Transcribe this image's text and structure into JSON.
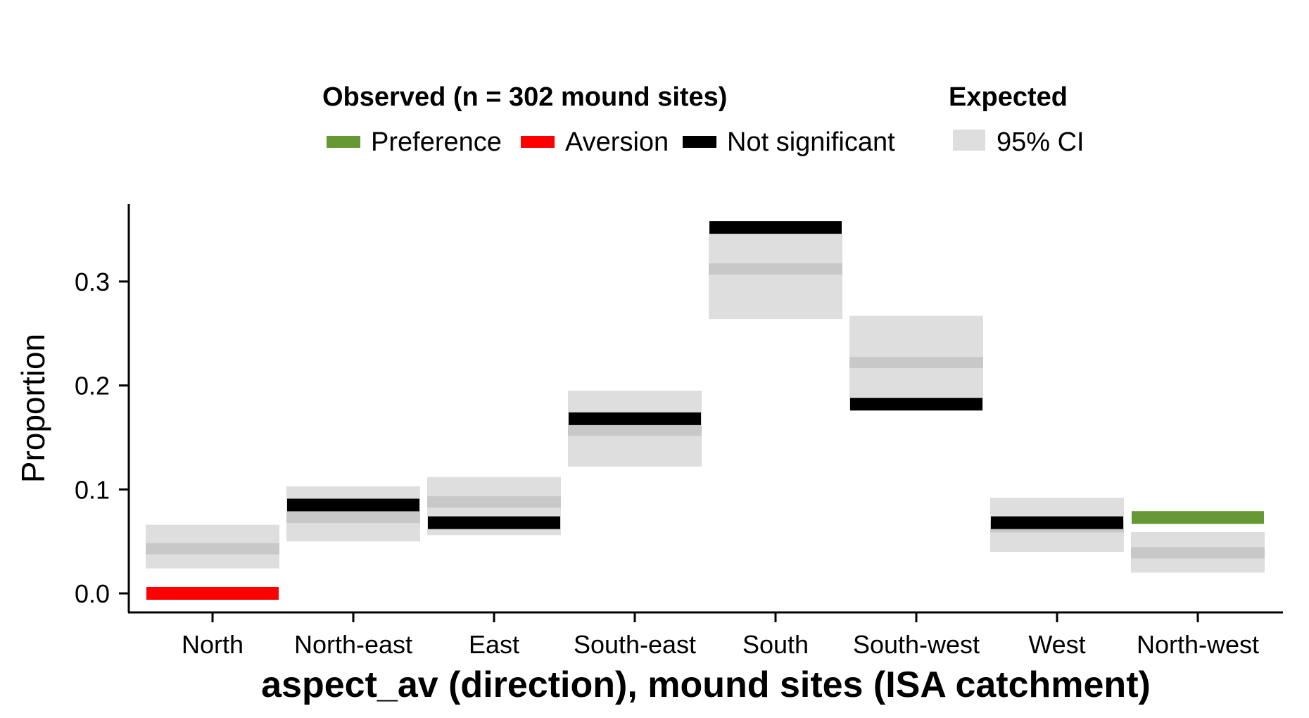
{
  "chart_data": {
    "type": "bar",
    "xlabel": "aspect_av (direction), mound sites (ISA catchment)",
    "ylabel": "Proportion",
    "ylim": [
      -0.015,
      0.37
    ],
    "yticks": [
      0.0,
      0.1,
      0.2,
      0.3
    ],
    "ytick_labels": [
      "0.0",
      "0.1",
      "0.2",
      "0.3"
    ],
    "grid": false,
    "categories": [
      "North",
      "North-east",
      "East",
      "South-east",
      "South",
      "South-west",
      "West",
      "North-west"
    ],
    "observed": [
      0.0,
      0.085,
      0.068,
      0.168,
      0.352,
      0.182,
      0.068,
      0.073
    ],
    "status": [
      "Aversion",
      "Not significant",
      "Not significant",
      "Not significant",
      "Not significant",
      "Not significant",
      "Not significant",
      "Preference"
    ],
    "expected": [
      0.043,
      0.073,
      0.088,
      0.157,
      0.312,
      0.222,
      0.064,
      0.039
    ],
    "ci_low": [
      0.024,
      0.05,
      0.056,
      0.122,
      0.264,
      0.177,
      0.04,
      0.02
    ],
    "ci_high": [
      0.066,
      0.103,
      0.112,
      0.195,
      0.346,
      0.267,
      0.092,
      0.059
    ],
    "legend": {
      "placement": "top",
      "observed_title": "Observed (n = 302 mound sites)",
      "expected_title": "Expected",
      "items": [
        {
          "label": "Preference",
          "color": "#669933"
        },
        {
          "label": "Aversion",
          "color": "#ff0000"
        },
        {
          "label": "Not significant",
          "color": "#000000"
        }
      ],
      "ci_label": "95% CI",
      "ci_color": "#dedede"
    },
    "colors": {
      "Preference": "#669933",
      "Aversion": "#ff0000",
      "Not significant": "#000000",
      "ci_band": "#dedede",
      "expected_line": "#c8c8c8"
    }
  }
}
